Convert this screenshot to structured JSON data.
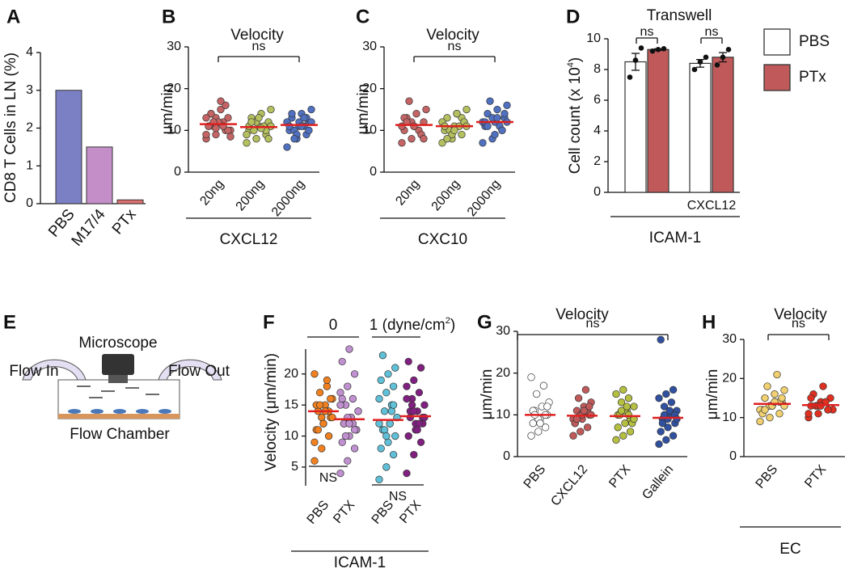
{
  "panel_labels": [
    "A",
    "B",
    "C",
    "D",
    "E",
    "F",
    "G",
    "H"
  ],
  "diagram": {
    "microscope": "Microscope",
    "flow_in": "Flow In",
    "flow_out": "Flow Out",
    "chamber": "Flow Chamber"
  },
  "chart_data": [
    {
      "type": "bar",
      "ylabel": "CD8 T Cells in LN (%)",
      "categories": [
        "PBS",
        "M17/4",
        "PTx"
      ],
      "values": [
        3,
        1.5,
        0.1
      ],
      "colors": [
        "#7b7fc4",
        "#c48fc9",
        "#e07070"
      ],
      "ylim": [
        0,
        4
      ],
      "yticks": [
        0,
        1,
        2,
        3,
        4
      ]
    },
    {
      "type": "dot",
      "title": "Velocity",
      "ylabel": "μm/min",
      "categories": [
        "20ng",
        "200ng",
        "2000ng"
      ],
      "group_label": "CXCL12",
      "ns_labels": [
        "ns"
      ],
      "colors": [
        "#c46464",
        "#b5c060",
        "#5070c0"
      ],
      "ylim": [
        0,
        30
      ],
      "yticks": [
        0,
        10,
        20,
        30
      ],
      "means": [
        11.5,
        10.8,
        11.3
      ],
      "points": [
        [
          8,
          9,
          10,
          11,
          12,
          13,
          14,
          15,
          10,
          11,
          12,
          9,
          13,
          16,
          11,
          12,
          10,
          14,
          17,
          8.5,
          12,
          11,
          13,
          10.5
        ],
        [
          7,
          8,
          9,
          10,
          11,
          12,
          13,
          14,
          15,
          10,
          11,
          9,
          12,
          10,
          11,
          13,
          8,
          12,
          10.5,
          11
        ],
        [
          6,
          8,
          9,
          10,
          11,
          12,
          13,
          14,
          15,
          10,
          11,
          12,
          9,
          13,
          11,
          12,
          10,
          14,
          11,
          12,
          8,
          13
        ]
      ]
    },
    {
      "type": "dot",
      "title": "Velocity",
      "ylabel": "μm/min",
      "categories": [
        "20ng",
        "200ng",
        "2000ng"
      ],
      "group_label": "CXC10",
      "ns_labels": [
        "ns"
      ],
      "colors": [
        "#c46464",
        "#b5c060",
        "#5070c0"
      ],
      "ylim": [
        0,
        30
      ],
      "yticks": [
        0,
        10,
        20,
        30
      ],
      "means": [
        11.3,
        11,
        12
      ],
      "points": [
        [
          7,
          8,
          9,
          10,
          11,
          12,
          13,
          14,
          15,
          17,
          10,
          11,
          12,
          9,
          13,
          11,
          8,
          12
        ],
        [
          7,
          8,
          9,
          10,
          11,
          12,
          13,
          14,
          15,
          10,
          11,
          12,
          9,
          13,
          11,
          10,
          12,
          8,
          14,
          11
        ],
        [
          7,
          8,
          10,
          11,
          12,
          13,
          14,
          15,
          16,
          17,
          11,
          12,
          13,
          10,
          12,
          9,
          14,
          11,
          13,
          12
        ]
      ]
    },
    {
      "type": "groupbar",
      "title": "Transwell",
      "ylabel": [
        "Cell count (x 10",
        "4",
        ")"
      ],
      "categories": [
        null,
        "CXCL12"
      ],
      "group_label": "ICAM-1",
      "ns_labels": [
        "ns",
        "ns"
      ],
      "ylim": [
        0,
        10
      ],
      "yticks": [
        0,
        2,
        4,
        6,
        8,
        10
      ],
      "series": [
        {
          "name": "PBS",
          "color": "#ffffff",
          "values": [
            8.5,
            8.4
          ],
          "errors": [
            0.55,
            0.25
          ],
          "points": [
            [
              7.5,
              8.6,
              9.4
            ],
            [
              8,
              8.5,
              8.8
            ]
          ]
        },
        {
          "name": "PTx",
          "color": "#c05a5a",
          "values": [
            9.3,
            8.8
          ],
          "errors": [
            0.05,
            0.3
          ],
          "points": [
            [
              9.2,
              9.3,
              9.35
            ],
            [
              8.3,
              8.8,
              9.3
            ]
          ]
        }
      ]
    },
    {
      "type": "dot",
      "ylabel": "Velocity (μm/min)",
      "categories": [
        "PBS",
        "PTX",
        "PBS",
        "PTX"
      ],
      "group_label": "ICAM-1",
      "headers": [
        "0",
        [
          "1 (dyne/cm",
          "2",
          ")"
        ]
      ],
      "ns_labels": [
        "NS",
        "NS"
      ],
      "colors": [
        "#f08020",
        "#c090d0",
        "#60c0d8",
        "#802080"
      ],
      "ylim": [
        2,
        24
      ],
      "yticks": [
        5,
        10,
        15,
        20
      ],
      "means": [
        14,
        12.7,
        12.6,
        13.2
      ],
      "points": [
        [
          6,
          8,
          10,
          11,
          12,
          13,
          14,
          15,
          16,
          17,
          18,
          20,
          13,
          14,
          15,
          12,
          16,
          11,
          14,
          13,
          15,
          19,
          9
        ],
        [
          4,
          6,
          8,
          9,
          10,
          11,
          12,
          13,
          14,
          15,
          16,
          17,
          18,
          20,
          22,
          24,
          11,
          12,
          13,
          14,
          10,
          12,
          15,
          13,
          11,
          16,
          12
        ],
        [
          3,
          5,
          7,
          8,
          9,
          10,
          11,
          12,
          13,
          14,
          15,
          16,
          17,
          18,
          19,
          20,
          21,
          23,
          12,
          13,
          11,
          14,
          12,
          10,
          15
        ],
        [
          4,
          7,
          9,
          10,
          11,
          12,
          13,
          14,
          15,
          16,
          17,
          18,
          19,
          21,
          22,
          12,
          13,
          14,
          11,
          13,
          15,
          12,
          16,
          14
        ]
      ]
    },
    {
      "type": "dot",
      "title": "Velocity",
      "ylabel": "μm/min",
      "categories": [
        "PBS",
        "CXCL12",
        "PTX",
        "Gallein"
      ],
      "ns_labels": [
        "ns"
      ],
      "colors": [
        "#ffffff",
        "#c05a5a",
        "#b5c040",
        "#3050a0"
      ],
      "ylim": [
        0,
        30
      ],
      "yticks": [
        0,
        10,
        20,
        30
      ],
      "means": [
        10,
        9.8,
        9.7,
        9.3
      ],
      "points": [
        [
          5,
          6,
          7,
          8,
          9,
          10,
          11,
          12,
          13,
          15,
          17,
          19,
          9,
          10,
          11,
          8,
          12,
          10
        ],
        [
          5,
          6,
          7,
          8,
          9,
          10,
          11,
          12,
          13,
          14,
          16,
          9,
          10,
          11,
          8,
          10,
          12,
          9,
          11,
          10
        ],
        [
          4,
          5,
          6,
          7,
          8,
          9,
          10,
          11,
          12,
          13,
          14,
          15,
          16,
          9,
          10,
          11,
          8,
          10,
          12,
          9,
          11,
          10
        ],
        [
          3,
          4,
          5,
          6,
          7,
          8,
          9,
          10,
          11,
          12,
          13,
          14,
          15,
          16,
          28,
          9,
          10,
          8,
          11,
          9,
          10
        ]
      ]
    },
    {
      "type": "dot",
      "title": "Velocity",
      "ylabel": "μm/min",
      "categories": [
        "PBS",
        "PTX"
      ],
      "group_label": "EC",
      "ns_labels": [
        "ns"
      ],
      "colors": [
        "#f0d070",
        "#e03020"
      ],
      "ylim": [
        0,
        30
      ],
      "yticks": [
        0,
        10,
        20,
        30
      ],
      "means": [
        13.5,
        13.2
      ],
      "points": [
        [
          9,
          10,
          11,
          12,
          13,
          14,
          15,
          16,
          17,
          18,
          21,
          12,
          13,
          14,
          11,
          13,
          15,
          12,
          14,
          13
        ],
        [
          10,
          11,
          12,
          13,
          14,
          15,
          16,
          18,
          12,
          13,
          14,
          11,
          13,
          12,
          15,
          13
        ]
      ]
    }
  ]
}
